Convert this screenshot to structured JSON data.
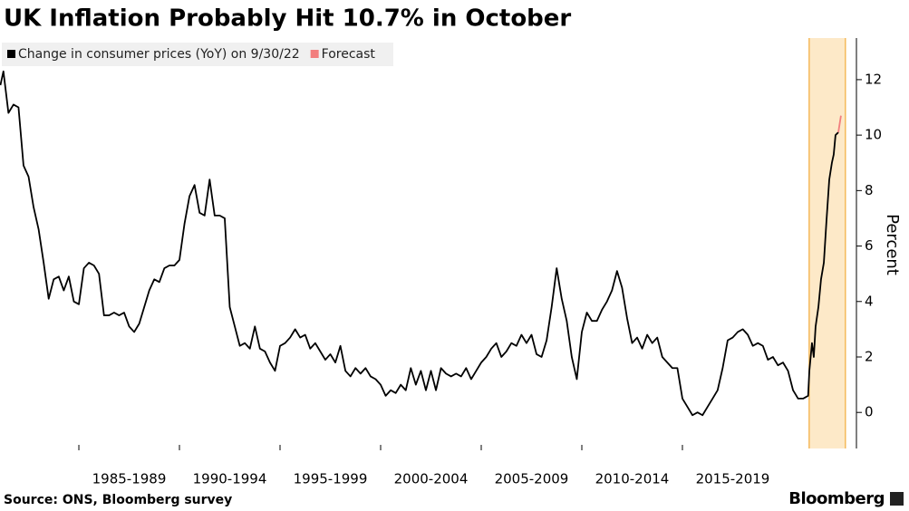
{
  "chart_data": {
    "type": "line",
    "title": "UK Inflation Probably Hit 10.7% in October",
    "y_label": "Percent",
    "source": "Source: ONS, Bloomberg survey",
    "brand": "Bloomberg",
    "xlim": [
      1981.08,
      2023.65
    ],
    "ylim": [
      -1.3,
      13.5
    ],
    "yticks": [
      0,
      2,
      4,
      6,
      8,
      10,
      12
    ],
    "xticks": [
      {
        "value": 1985,
        "label": "1985-1989"
      },
      {
        "value": 1990,
        "label": "1990-1994"
      },
      {
        "value": 1995,
        "label": "1995-1999"
      },
      {
        "value": 2000,
        "label": "2000-2004"
      },
      {
        "value": 2005,
        "label": "2005-2009"
      },
      {
        "value": 2010,
        "label": "2010-2014"
      },
      {
        "value": 2015,
        "label": "2015-2019"
      }
    ],
    "shaded_xlim": [
      2021.3,
      2023.1
    ],
    "shaded_color": "#fde9c8",
    "shaded_edge_color": "#f5b95a",
    "series": [
      {
        "name": "Change in consumer prices (YoY) on 9/30/22",
        "color": "#000000",
        "x": [
          1981.1,
          1981.25,
          1981.5,
          1981.75,
          1982,
          1982.25,
          1982.5,
          1982.75,
          1983,
          1983.25,
          1983.5,
          1983.75,
          1984,
          1984.25,
          1984.5,
          1984.75,
          1985,
          1985.25,
          1985.5,
          1985.75,
          1986,
          1986.25,
          1986.5,
          1986.75,
          1987,
          1987.25,
          1987.5,
          1987.75,
          1988,
          1988.25,
          1988.5,
          1988.75,
          1989,
          1989.25,
          1989.5,
          1989.75,
          1990,
          1990.25,
          1990.5,
          1990.75,
          1991,
          1991.25,
          1991.5,
          1991.75,
          1992,
          1992.25,
          1992.5,
          1992.75,
          1993,
          1993.25,
          1993.5,
          1993.75,
          1994,
          1994.25,
          1994.5,
          1994.75,
          1995,
          1995.25,
          1995.5,
          1995.75,
          1996,
          1996.25,
          1996.5,
          1996.75,
          1997,
          1997.25,
          1997.5,
          1997.75,
          1998,
          1998.25,
          1998.5,
          1998.75,
          1999,
          1999.25,
          1999.5,
          1999.75,
          2000,
          2000.25,
          2000.5,
          2000.75,
          2001,
          2001.25,
          2001.5,
          2001.75,
          2002,
          2002.25,
          2002.5,
          2002.75,
          2003,
          2003.25,
          2003.5,
          2003.75,
          2004,
          2004.25,
          2004.5,
          2004.75,
          2005,
          2005.25,
          2005.5,
          2005.75,
          2006,
          2006.25,
          2006.5,
          2006.75,
          2007,
          2007.25,
          2007.5,
          2007.75,
          2008,
          2008.25,
          2008.5,
          2008.75,
          2009,
          2009.25,
          2009.5,
          2009.75,
          2010,
          2010.25,
          2010.5,
          2010.75,
          2011,
          2011.25,
          2011.5,
          2011.75,
          2012,
          2012.25,
          2012.5,
          2012.75,
          2013,
          2013.25,
          2013.5,
          2013.75,
          2014,
          2014.25,
          2014.5,
          2014.75,
          2015,
          2015.25,
          2015.5,
          2015.75,
          2016,
          2016.25,
          2016.5,
          2016.75,
          2017,
          2017.25,
          2017.5,
          2017.75,
          2018,
          2018.25,
          2018.5,
          2018.75,
          2019,
          2019.25,
          2019.5,
          2019.75,
          2020,
          2020.25,
          2020.5,
          2020.75,
          2021,
          2021.25,
          2021.31,
          2021.44,
          2021.53,
          2021.62,
          2021.76,
          2021.89,
          2022.03,
          2022.16,
          2022.3,
          2022.43,
          2022.52,
          2022.61,
          2022.75
        ],
        "values": [
          11.8,
          12.3,
          10.8,
          11.1,
          11.0,
          8.9,
          8.5,
          7.4,
          6.6,
          5.4,
          4.1,
          4.8,
          4.9,
          4.4,
          4.9,
          4.0,
          3.9,
          5.2,
          5.4,
          5.3,
          5.0,
          3.5,
          3.5,
          3.6,
          3.5,
          3.6,
          3.1,
          2.9,
          3.2,
          3.8,
          4.4,
          4.8,
          4.7,
          5.2,
          5.3,
          5.3,
          5.5,
          6.8,
          7.8,
          8.2,
          7.2,
          7.1,
          8.4,
          7.1,
          7.1,
          7.0,
          3.8,
          3.1,
          2.4,
          2.5,
          2.3,
          3.1,
          2.3,
          2.2,
          1.8,
          1.5,
          2.4,
          2.5,
          2.7,
          3.0,
          2.7,
          2.8,
          2.3,
          2.5,
          2.2,
          1.9,
          2.1,
          1.8,
          2.4,
          1.5,
          1.3,
          1.6,
          1.4,
          1.6,
          1.3,
          1.2,
          1.0,
          0.6,
          0.8,
          0.7,
          1.0,
          0.8,
          1.6,
          1.0,
          1.5,
          0.8,
          1.5,
          0.8,
          1.6,
          1.4,
          1.3,
          1.4,
          1.3,
          1.6,
          1.2,
          1.5,
          1.8,
          2.0,
          2.3,
          2.5,
          2.0,
          2.2,
          2.5,
          2.4,
          2.8,
          2.5,
          2.8,
          2.1,
          2.0,
          2.6,
          3.8,
          5.2,
          4.1,
          3.3,
          2.0,
          1.2,
          2.9,
          3.6,
          3.3,
          3.3,
          3.7,
          4.0,
          4.4,
          5.1,
          4.5,
          3.4,
          2.5,
          2.7,
          2.3,
          2.8,
          2.5,
          2.7,
          2.0,
          1.8,
          1.6,
          1.6,
          0.5,
          0.2,
          -0.1,
          0.0,
          -0.1,
          0.2,
          0.5,
          0.8,
          1.6,
          2.6,
          2.7,
          2.9,
          3.0,
          2.8,
          2.4,
          2.5,
          2.4,
          1.9,
          2.0,
          1.7,
          1.8,
          1.5,
          0.8,
          0.5,
          0.5,
          0.6,
          1.5,
          2.5,
          2.0,
          3.1,
          3.8,
          4.8,
          5.4,
          6.9,
          8.4,
          9.0,
          9.3,
          10.0,
          10.1
        ]
      },
      {
        "name": "Forecast",
        "color": "#f27e7e",
        "x": [
          2022.75,
          2022.88
        ],
        "values": [
          10.1,
          10.7
        ]
      }
    ]
  }
}
